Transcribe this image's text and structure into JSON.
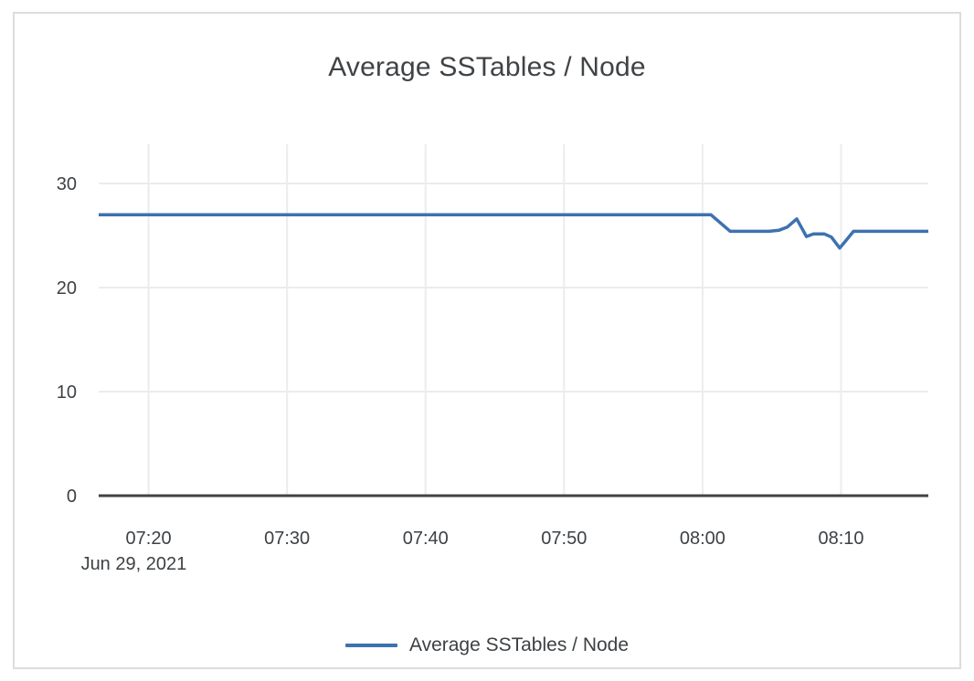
{
  "chart_data": {
    "type": "line",
    "title": "Average SSTables / Node",
    "x_axis": {
      "date_label": "Jun 29, 2021",
      "ticks": [
        {
          "label": "07:20",
          "t": 20
        },
        {
          "label": "07:30",
          "t": 30
        },
        {
          "label": "07:40",
          "t": 40
        },
        {
          "label": "07:50",
          "t": 50
        },
        {
          "label": "08:00",
          "t": 60
        },
        {
          "label": "08:10",
          "t": 70
        }
      ],
      "range_minutes_after_0700": [
        16.4,
        76.3
      ]
    },
    "y_axis": {
      "ticks": [
        0,
        10,
        20,
        30
      ],
      "range": [
        0,
        33.8
      ]
    },
    "series": [
      {
        "name": "Average SSTables / Node",
        "points": [
          [
            16.4,
            27.0
          ],
          [
            60.6,
            27.0
          ],
          [
            62.0,
            25.4
          ],
          [
            64.8,
            25.4
          ],
          [
            65.5,
            25.5
          ],
          [
            66.1,
            25.8
          ],
          [
            66.8,
            26.6
          ],
          [
            67.5,
            24.9
          ],
          [
            68.0,
            25.15
          ],
          [
            68.8,
            25.15
          ],
          [
            69.3,
            24.85
          ],
          [
            69.9,
            23.8
          ],
          [
            70.4,
            24.6
          ],
          [
            70.9,
            25.4
          ],
          [
            76.3,
            25.4
          ]
        ]
      }
    ],
    "legend": {
      "position": "bottom",
      "label": "Average SSTables / Node"
    },
    "colors": {
      "line": "#3d72b0",
      "grid": "#ececec",
      "axis_baseline": "#424242",
      "tick_text": "#3d4144",
      "title_text": "#404346",
      "card_border": "#dcdcdc",
      "background": "#ffffff"
    },
    "grid": true
  }
}
